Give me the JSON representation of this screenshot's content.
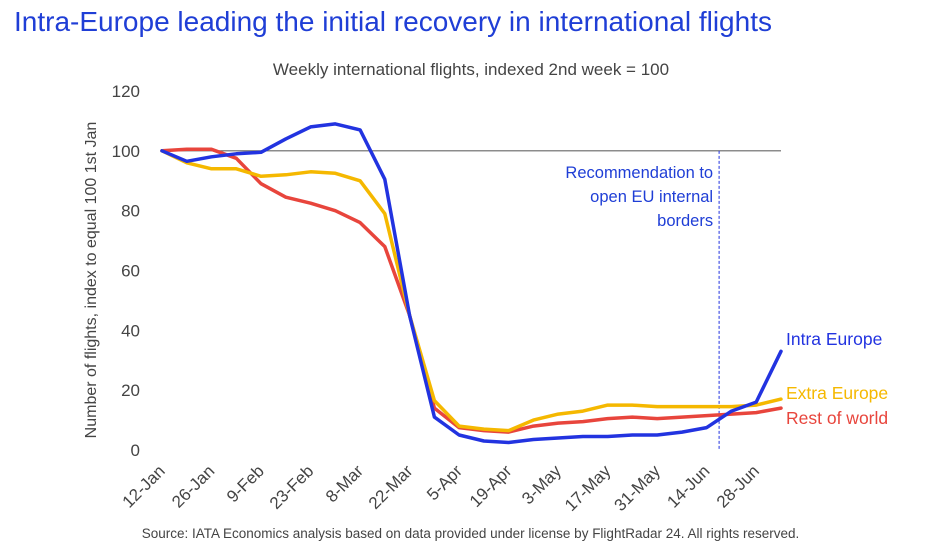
{
  "title": "Intra-Europe leading the initial recovery in international flights",
  "subtitle": "Weekly international flights, indexed 2nd week = 100",
  "source": "Source: IATA Economics analysis based on data provided under license by FlightRadar 24. All rights reserved.",
  "chart_data": {
    "type": "line",
    "ylabel": "Number of flights, index to equal 100 1st Jan",
    "ylim": [
      0,
      120
    ],
    "yticks": [
      "0",
      "20",
      "40",
      "60",
      "80",
      "100",
      "120"
    ],
    "xticks": [
      "12-Jan",
      "26-Jan",
      "9-Feb",
      "23-Feb",
      "8-Mar",
      "22-Mar",
      "5-Apr",
      "19-Apr",
      "3-May",
      "17-May",
      "31-May",
      "14-Jun",
      "28-Jun"
    ],
    "reference_line": 100,
    "annotation": {
      "lines": [
        "Recommendation to",
        "open EU internal",
        "borders"
      ],
      "at_week": 22.5
    },
    "series": [
      {
        "name": "Intra Europe",
        "color": "#2233e0",
        "values": [
          100,
          96.5,
          98,
          99,
          99.5,
          104,
          108,
          109,
          107,
          90.5,
          45,
          11,
          5,
          3,
          2.5,
          3.5,
          4,
          4.5,
          4.5,
          5,
          5,
          6,
          7.5,
          13,
          16,
          33
        ]
      },
      {
        "name": "Extra Europe",
        "color": "#f5b800",
        "values": [
          100,
          96,
          94,
          94,
          91.5,
          92,
          93,
          92.5,
          90,
          79,
          45,
          16.5,
          8,
          7,
          6.5,
          10,
          12,
          13,
          15,
          15,
          14.5,
          14.5,
          14.5,
          14.5,
          15,
          17
        ]
      },
      {
        "name": "Rest of world",
        "color": "#e8453c",
        "values": [
          100,
          100.5,
          100.5,
          97.5,
          89,
          84.5,
          82.5,
          80,
          76,
          68,
          45,
          14,
          7.5,
          6.5,
          6,
          8,
          9,
          9.5,
          10.5,
          11,
          10.5,
          11,
          11.5,
          12,
          12.5,
          14
        ]
      }
    ]
  }
}
